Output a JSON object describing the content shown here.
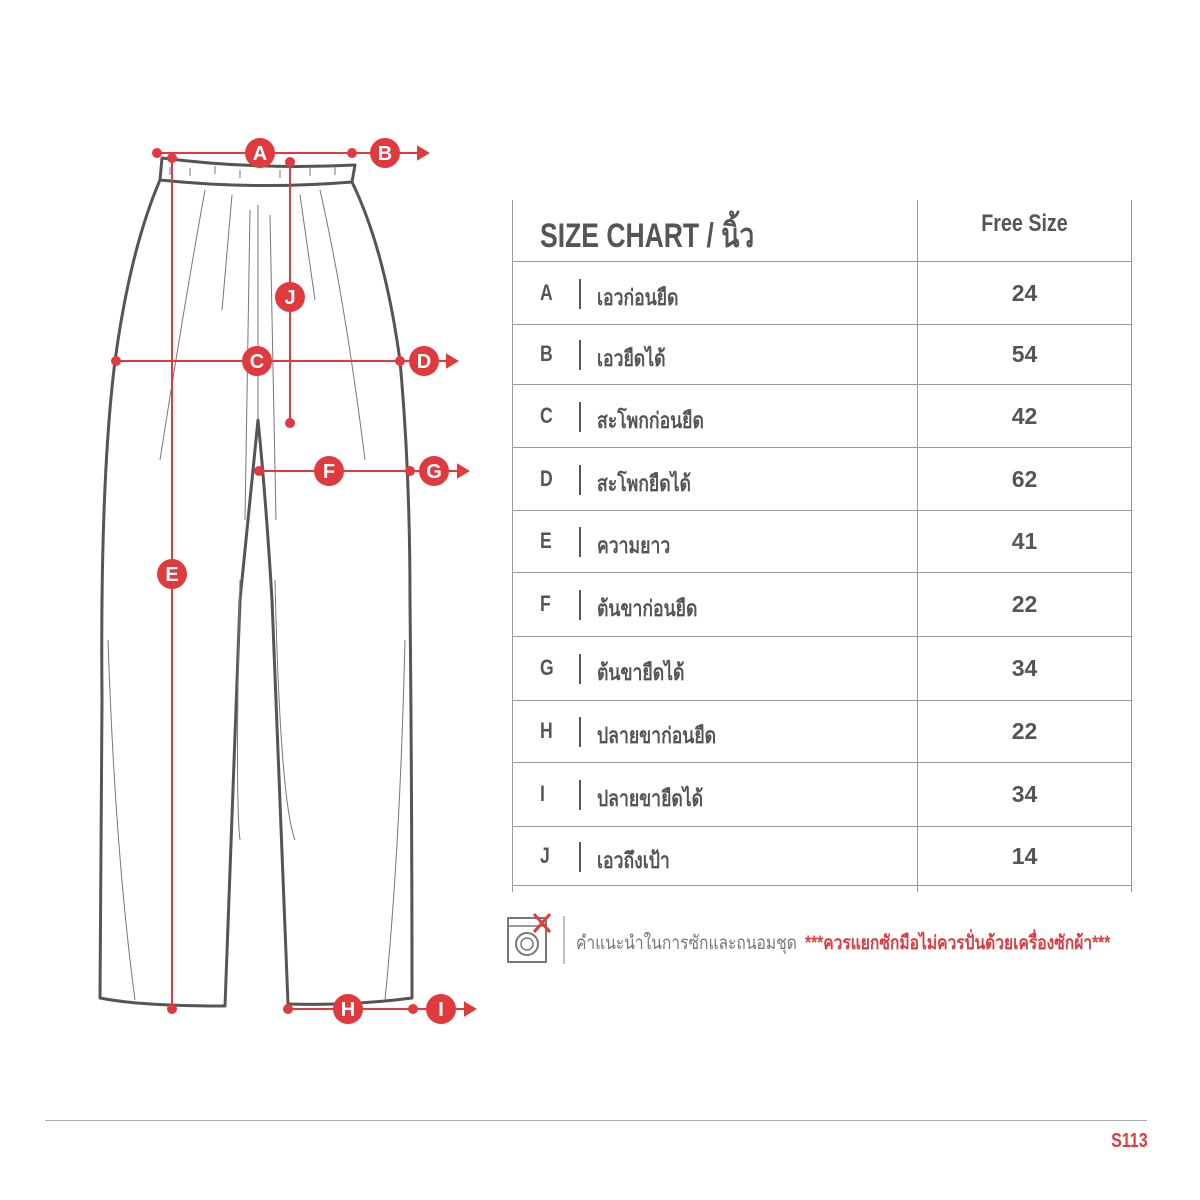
{
  "colors": {
    "accent": "#e03a3e",
    "text": "#555555",
    "outline": "#555555"
  },
  "diagram": {
    "markers": [
      "A",
      "B",
      "C",
      "D",
      "E",
      "F",
      "G",
      "H",
      "I",
      "J"
    ]
  },
  "table": {
    "title": "SIZE CHART / นิ้ว",
    "column_header": "Free Size",
    "rows": [
      {
        "code": "A",
        "label": "เอวก่อนยืด",
        "value": "24"
      },
      {
        "code": "B",
        "label": "เอวยืดได้",
        "value": "54"
      },
      {
        "code": "C",
        "label": "สะโพกก่อนยืด",
        "value": "42"
      },
      {
        "code": "D",
        "label": "สะโพกยืดได้",
        "value": "62"
      },
      {
        "code": "E",
        "label": "ความยาว",
        "value": "41"
      },
      {
        "code": "F",
        "label": "ต้นขาก่อนยืด",
        "value": "22"
      },
      {
        "code": "G",
        "label": "ต้นขายืดได้",
        "value": "34"
      },
      {
        "code": "H",
        "label": "ปลายขาก่อนยืด",
        "value": "22"
      },
      {
        "code": "I",
        "label": "ปลายขายืดได้",
        "value": "34"
      },
      {
        "code": "J",
        "label": "เอวถึงเป้า",
        "value": "14"
      }
    ]
  },
  "care": {
    "icon": "no-machine-wash-icon",
    "label": "คำแนะนำในการซักและถนอมชุด",
    "warning": "***ควรแยกซักมือไม่ควรปั่นด้วยเครื่องซักผ้า***"
  },
  "footer": {
    "code": "S113"
  }
}
